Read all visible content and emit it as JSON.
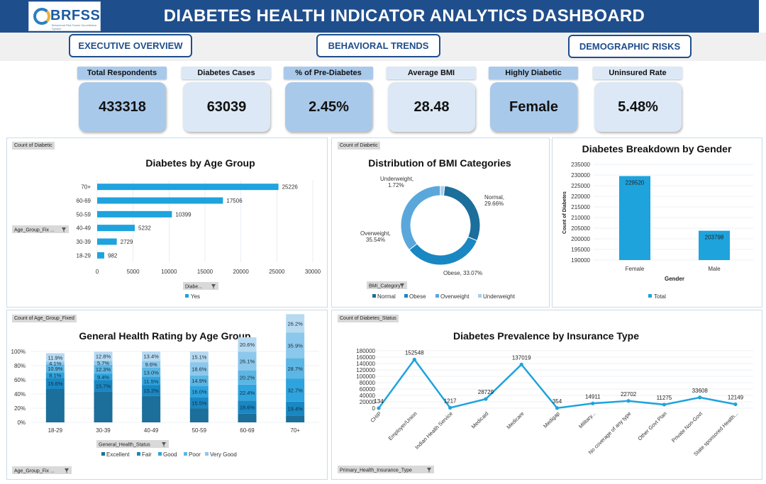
{
  "header": {
    "title": "DIABETES HEALTH INDICATOR ANALYTICS DASHBOARD",
    "logo_text": "BRFSS",
    "logo_sub": "Behavioral Risk Factor Surveillance System"
  },
  "nav": [
    "EXECUTIVE OVERVIEW",
    "BEHAVIORAL TRENDS",
    "DEMOGRAPHIC RISKS"
  ],
  "kpis": [
    {
      "label": "Total Respondents",
      "value": "433318",
      "style": "dark"
    },
    {
      "label": "Diabetes Cases",
      "value": "63039",
      "style": "light"
    },
    {
      "label": "% of Pre-Diabetes",
      "value": "2.45%",
      "style": "dark"
    },
    {
      "label": "Average BMI",
      "value": "28.48",
      "style": "light"
    },
    {
      "label": "Highly Diabetic",
      "value": "Female",
      "style": "dark"
    },
    {
      "label": "Uninsured Rate",
      "value": "5.48%",
      "style": "light"
    }
  ],
  "colors": {
    "bar": "#1ea3dd",
    "line": "#1ea3dd",
    "header": "#1f4e8c",
    "donut": [
      "#1b6f9a",
      "#1987c2",
      "#5aa7db",
      "#a8cdeb"
    ],
    "stack": [
      "#1b6f9a",
      "#1987c2",
      "#2ea3dd",
      "#6cbbe6",
      "#a8d3ee"
    ]
  },
  "chart_data": [
    {
      "type": "bar",
      "orientation": "horizontal",
      "tag": "Count of Diabetic",
      "title": "Diabetes by Age Group",
      "categories": [
        "18-29",
        "30-39",
        "40-49",
        "50-59",
        "60-69",
        "70+"
      ],
      "values": [
        982,
        2729,
        5232,
        10399,
        17506,
        25226
      ],
      "labels": [
        "982",
        "2729",
        "5232",
        "10399",
        "17506",
        "25226"
      ],
      "xlim": [
        0,
        30000
      ],
      "xticks": [
        "0",
        "5000",
        "10000",
        "15000",
        "20000",
        "25000",
        "30000"
      ],
      "filter_left": "Age_Group_Fix ...",
      "filter_bottom": "Diabe...",
      "legend": [
        "Yes"
      ]
    },
    {
      "type": "pie",
      "donut": true,
      "tag": "Count of Diabetic",
      "title": "Distribution of BMI Categories",
      "categories": [
        "Normal",
        "Obese",
        "Overweight",
        "Underweight"
      ],
      "values": [
        29.66,
        33.07,
        35.54,
        1.72
      ],
      "labels": [
        "Normal, 29.66%",
        "Obese, 33.07%",
        "Overweight, 35.54%",
        "Underweight, 1.72%"
      ],
      "filter": "BMI_Category",
      "legend": [
        "Normal",
        "Obese",
        "Overweight",
        "Underweight"
      ]
    },
    {
      "type": "bar",
      "title": "Diabetes Breakdown by Gender",
      "categories": [
        "Female",
        "Male"
      ],
      "values": [
        229520,
        203798
      ],
      "labels": [
        "229520",
        "203798"
      ],
      "ylim": [
        190000,
        235000
      ],
      "yticks": [
        "190000",
        "195000",
        "200000",
        "205000",
        "210000",
        "215000",
        "220000",
        "225000",
        "230000",
        "235000"
      ],
      "xlabel": "Gender",
      "ylabel": "Count of Diabetes",
      "legend": [
        "Total"
      ]
    },
    {
      "type": "bar",
      "stacked": true,
      "percent": true,
      "tag": "Count of Age_Group_Fixed",
      "title": "General Health Rating by Age Group",
      "categories": [
        "18-29",
        "30-39",
        "40-49",
        "50-59",
        "60-69",
        "70+"
      ],
      "series": [
        {
          "name": "Excellent",
          "values": [
            47.0,
            43.8,
            37.3,
            19.9,
            12.2,
            9.8
          ],
          "label": [
            "",
            "",
            "",
            "",
            "",
            ""
          ]
        },
        {
          "name": "Fair",
          "values": [
            15.6,
            15.7,
            15.2,
            15.5,
            18.6,
            19.4
          ],
          "label": [
            "15.6%",
            "15.7%",
            "15.2%",
            "15.5%",
            "18.6%",
            "19.4%"
          ]
        },
        {
          "name": "Good",
          "values": [
            8.1,
            9.4,
            11.5,
            16.0,
            22.4,
            32.7
          ],
          "label": [
            "8.1%",
            "9.4%",
            "11.5%",
            "16.0%",
            "22.4%",
            "32.7%"
          ]
        },
        {
          "name": "Poor",
          "values": [
            10.9,
            12.3,
            13.0,
            14.9,
            20.2,
            28.7
          ],
          "label": [
            "10.9%",
            "12.3%",
            "13.0%",
            "14.9%",
            "20.2%",
            "28.7%"
          ]
        },
        {
          "name": "Very Good",
          "values": [
            4.1,
            5.7,
            9.6,
            18.6,
            26.1,
            35.9
          ],
          "label": [
            "4.1%",
            "5.7%",
            "9.6%",
            "18.6%",
            "26.1%",
            "35.9%"
          ]
        },
        {
          "name": "Excellent-top",
          "values": [
            11.9,
            12.8,
            13.4,
            15.1,
            20.6,
            26.2
          ],
          "label": [
            "11.9%",
            "12.8%",
            "13.4%",
            "15.1%",
            "20.6%",
            "26.2%"
          ]
        }
      ],
      "yticks": [
        "0%",
        "20%",
        "40%",
        "60%",
        "80%",
        "100%"
      ],
      "filter": "General_Health_Status",
      "filter_bottom": "Age_Group_Fix ...",
      "legend": [
        "Excellent",
        "Fair",
        "Good",
        "Poor",
        "Very Good"
      ]
    },
    {
      "type": "line",
      "tag": "Count of Diabetes_Status",
      "title": "Diabetes Prevalence by Insurance Type",
      "categories": [
        "CHIP",
        "Employer/Union",
        "Indian Health Service",
        "Medicaid",
        "Medicare",
        "Medigap",
        "Military...",
        "No coverage of any type",
        "Other Govt Plan",
        "Private Non-Govt",
        "State sponsored Health..."
      ],
      "values": [
        134,
        152548,
        1217,
        28729,
        137019,
        354,
        14911,
        22702,
        11275,
        33608,
        12149
      ],
      "labels": [
        "134",
        "152548",
        "1217",
        "28729",
        "137019",
        "354",
        "14911",
        "22702",
        "11275",
        "33608",
        "12149"
      ],
      "ylim": [
        0,
        180000
      ],
      "yticks": [
        "0",
        "20000",
        "40000",
        "60000",
        "80000",
        "100000",
        "120000",
        "140000",
        "160000",
        "180000"
      ],
      "filter": "Primary_Health_Insurance_Type"
    }
  ]
}
